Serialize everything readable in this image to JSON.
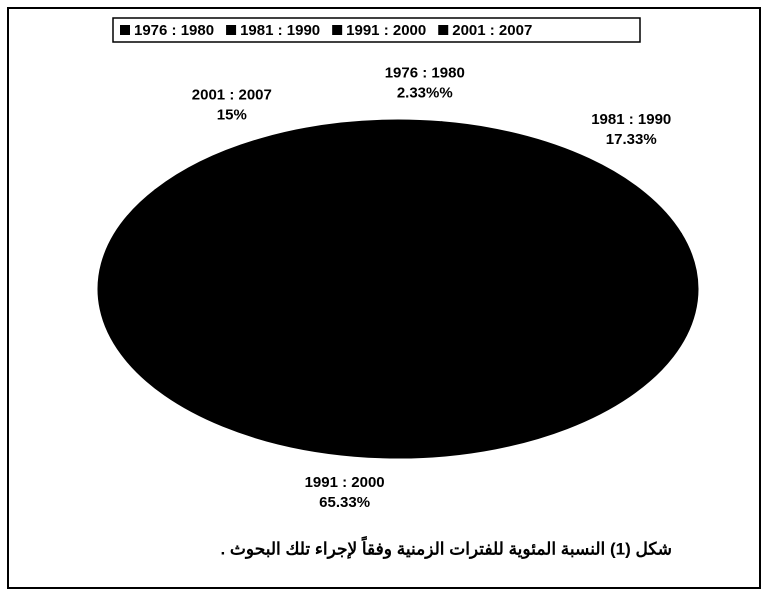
{
  "chart_data": {
    "type": "pie",
    "categories": [
      "1976 : 1980",
      "1981 : 1990",
      "1991 : 2000",
      "2001 : 2007"
    ],
    "values": [
      2.33,
      17.33,
      65.33,
      15
    ],
    "value_labels": [
      "2.33%%",
      "17.33%",
      "65.33%",
      "15%"
    ],
    "color": "#000000",
    "legend": "top",
    "caption": "شكل (1) النسبة المئوية للفترات الزمنية وفقاً لإجراء تلك البحوث ."
  }
}
